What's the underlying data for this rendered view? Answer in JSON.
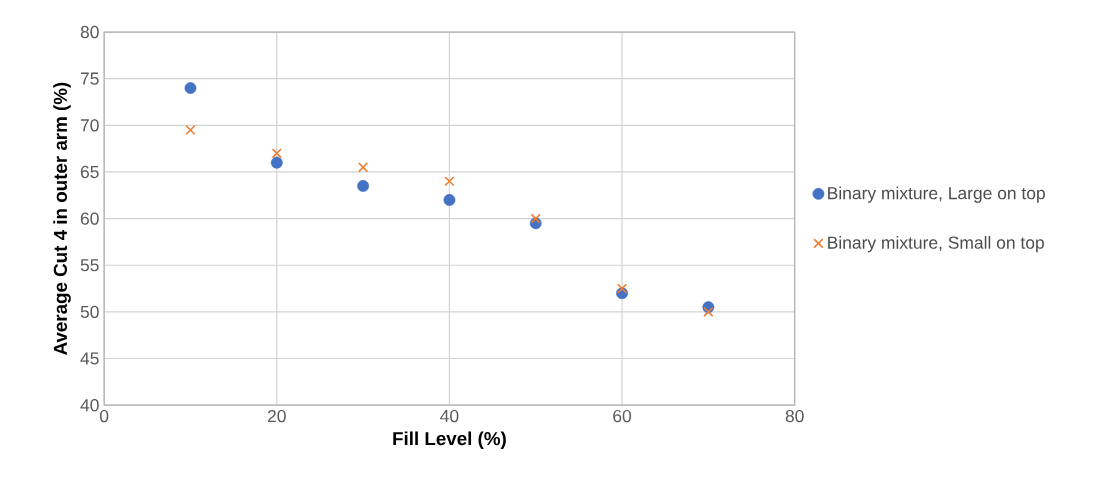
{
  "chart_data": {
    "type": "scatter",
    "xlabel": "Fill Level (%)",
    "ylabel": "Average Cut 4 in outer arm (%)",
    "x": [
      10,
      20,
      30,
      40,
      50,
      60,
      70
    ],
    "series": [
      {
        "name": "Binary mixture, Large on top",
        "color": "#4472c4",
        "marker": "circle",
        "values": [
          74,
          66,
          63.5,
          62,
          59.5,
          52,
          50.5
        ]
      },
      {
        "name": "Binary mixture, Small on top",
        "color": "#ed7d31",
        "marker": "cross",
        "values": [
          69.5,
          67,
          65.5,
          64,
          60,
          52.5,
          50
        ]
      }
    ],
    "xlim": [
      0,
      80
    ],
    "xticks": [
      0,
      20,
      40,
      60,
      80
    ],
    "ylim": [
      40,
      80
    ],
    "yticks": [
      40,
      45,
      50,
      55,
      60,
      65,
      70,
      75,
      80
    ],
    "grid": true,
    "legend": "right"
  }
}
